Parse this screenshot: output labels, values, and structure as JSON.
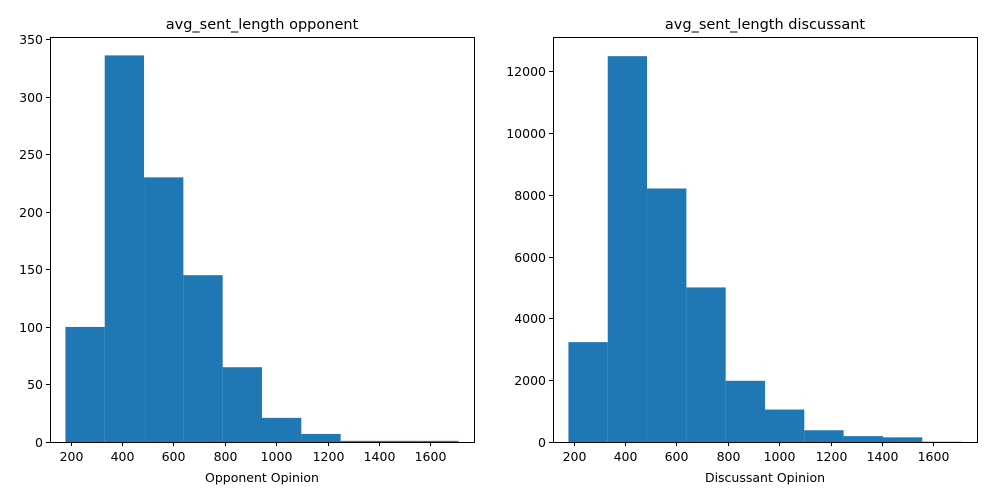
{
  "chart_data": [
    {
      "type": "bar",
      "title": "avg_sent_length opponent",
      "xlabel": "Opponent Opinion",
      "ylabel": "",
      "bin_edges": [
        180,
        333,
        486,
        639,
        792,
        945,
        1098,
        1251,
        1404,
        1557,
        1710
      ],
      "values": [
        100,
        336,
        230,
        145,
        65,
        21,
        7,
        1,
        1,
        1
      ],
      "xlim": [
        120,
        1770
      ],
      "ylim": [
        0,
        352
      ],
      "xticks": [
        200,
        400,
        600,
        800,
        1000,
        1200,
        1400,
        1600
      ],
      "xtick_labels": [
        "200",
        "400",
        "600",
        "800",
        "1000",
        "1200",
        "1400",
        "1600"
      ],
      "yticks": [
        0,
        50,
        100,
        150,
        200,
        250,
        300,
        350
      ],
      "ytick_labels": [
        "0",
        "50",
        "100",
        "150",
        "200",
        "250",
        "300",
        "350"
      ],
      "color": "#1f77b4"
    },
    {
      "type": "bar",
      "title": "avg_sent_length discussant",
      "xlabel": "Discussant Opinion",
      "ylabel": "",
      "bin_edges": [
        180,
        333,
        486,
        639,
        792,
        945,
        1098,
        1251,
        1404,
        1557,
        1710
      ],
      "values": [
        3230,
        12480,
        8200,
        5000,
        1980,
        1050,
        380,
        190,
        150,
        10
      ],
      "xlim": [
        120,
        1770
      ],
      "ylim": [
        0,
        13100
      ],
      "xticks": [
        200,
        400,
        600,
        800,
        1000,
        1200,
        1400,
        1600
      ],
      "xtick_labels": [
        "200",
        "400",
        "600",
        "800",
        "1000",
        "1200",
        "1400",
        "1600"
      ],
      "yticks": [
        0,
        2000,
        4000,
        6000,
        8000,
        10000,
        12000
      ],
      "ytick_labels": [
        "0",
        "2000",
        "4000",
        "6000",
        "8000",
        "10000",
        "12000"
      ],
      "color": "#1f77b4"
    }
  ]
}
